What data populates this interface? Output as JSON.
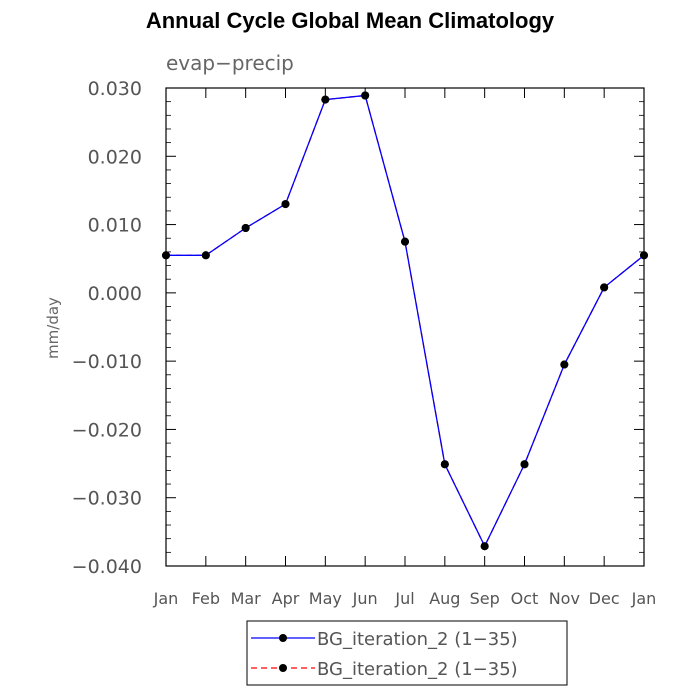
{
  "chart_data": {
    "type": "line",
    "title": "Annual Cycle Global Mean Climatology",
    "subtitle": "evap−precip",
    "xlabel": "",
    "ylabel": "mm/day",
    "categories": [
      "Jan",
      "Feb",
      "Mar",
      "Apr",
      "May",
      "Jun",
      "Jul",
      "Aug",
      "Sep",
      "Oct",
      "Nov",
      "Dec",
      "Jan"
    ],
    "ylim": [
      -0.04,
      0.03
    ],
    "yticks": [
      0.03,
      0.02,
      0.01,
      0.0,
      -0.01,
      -0.02,
      -0.03,
      -0.04
    ],
    "ytick_labels": [
      "0.030",
      "0.020",
      "0.010",
      "0.000",
      "−0.010",
      "−0.020",
      "−0.030",
      "−0.040"
    ],
    "series": [
      {
        "name": "BG_iteration_2 (1−35)",
        "color": "#0000ff",
        "line_style": "solid",
        "values": [
          0.0055,
          0.0055,
          0.0095,
          0.013,
          0.0283,
          0.0289,
          0.0075,
          -0.0251,
          -0.0371,
          -0.0251,
          -0.0105,
          0.0008,
          0.0055
        ]
      },
      {
        "name": "BG_iteration_2 (1−35)",
        "color": "#ff0000",
        "line_style": "dashed",
        "values": [
          0.0055,
          0.0055,
          0.0095,
          0.013,
          0.0283,
          0.0289,
          0.0075,
          -0.0251,
          -0.0371,
          -0.0251,
          -0.0105,
          0.0008,
          0.0055
        ]
      }
    ],
    "grid": false,
    "legend_position": "bottom-center"
  }
}
